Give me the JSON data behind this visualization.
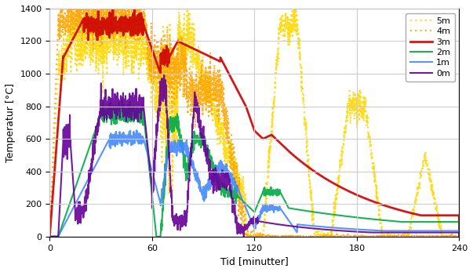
{
  "title": "",
  "xlabel": "Tid [minutter]",
  "ylabel": "Temperatur [°C]",
  "xlim": [
    0,
    240
  ],
  "ylim": [
    0,
    1400
  ],
  "xticks": [
    0,
    60,
    120,
    180,
    240
  ],
  "yticks": [
    0,
    200,
    400,
    600,
    800,
    1000,
    1200,
    1400
  ],
  "legend_labels": [
    "5m",
    "4m",
    "3m",
    "2m",
    "1m",
    "0m"
  ],
  "line_colors": [
    "#FFD700",
    "#FFA500",
    "#CC0000",
    "#00AA44",
    "#4488FF",
    "#660099"
  ],
  "line_styles": [
    "dotted",
    "dotted",
    "solid",
    "solid",
    "solid",
    "solid"
  ],
  "line_widths": [
    1.5,
    1.5,
    2.0,
    1.5,
    1.5,
    1.5
  ],
  "background_color": "#ffffff",
  "grid_color": "#cccccc"
}
